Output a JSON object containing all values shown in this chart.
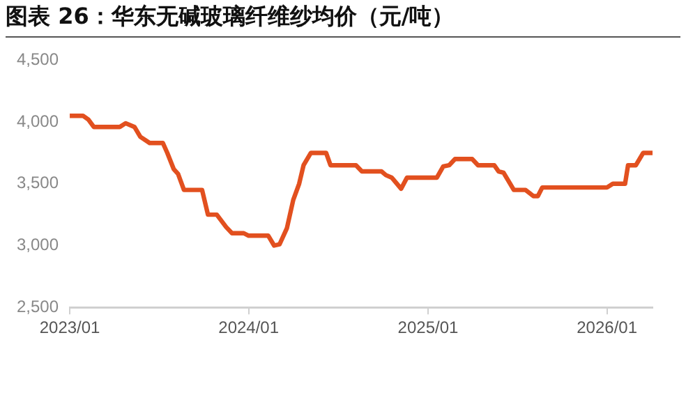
{
  "chart_data": {
    "type": "line",
    "title": "图表 26：华东无碱玻璃纤维纱均价（元/吨）",
    "x": [
      "2023-01-01",
      "2023-01-28",
      "2023-02-08",
      "2023-02-19",
      "2023-04-13",
      "2023-04-25",
      "2023-05-13",
      "2023-05-25",
      "2023-06-13",
      "2023-07-10",
      "2023-07-19",
      "2023-08-01",
      "2023-08-10",
      "2023-08-22",
      "2023-09-28",
      "2023-10-10",
      "2023-10-28",
      "2023-11-16",
      "2023-11-28",
      "2023-12-22",
      "2024-01-01",
      "2024-02-10",
      "2024-02-22",
      "2024-03-04",
      "2024-03-19",
      "2024-04-01",
      "2024-04-13",
      "2024-04-22",
      "2024-05-07",
      "2024-06-07",
      "2024-06-16",
      "2024-08-07",
      "2024-08-19",
      "2024-09-28",
      "2024-10-07",
      "2024-10-19",
      "2024-11-07",
      "2024-11-19",
      "2025-01-19",
      "2025-02-01",
      "2025-02-13",
      "2025-02-25",
      "2025-04-01",
      "2025-04-13",
      "2025-05-16",
      "2025-05-25",
      "2025-06-04",
      "2025-06-25",
      "2025-07-19",
      "2025-08-04",
      "2025-08-13",
      "2025-08-22",
      "2026-01-01",
      "2026-01-13",
      "2026-02-07",
      "2026-02-13",
      "2026-03-01",
      "2026-03-16",
      "2026-04-04"
    ],
    "series": [
      {
        "color": "#e2501f",
        "values": [
          4050,
          4050,
          4020,
          3960,
          3960,
          3990,
          3960,
          3880,
          3830,
          3830,
          3750,
          3620,
          3580,
          3450,
          3450,
          3250,
          3250,
          3150,
          3100,
          3100,
          3080,
          3080,
          3000,
          3010,
          3140,
          3370,
          3500,
          3650,
          3750,
          3750,
          3650,
          3650,
          3600,
          3600,
          3570,
          3550,
          3460,
          3550,
          3550,
          3640,
          3650,
          3700,
          3700,
          3650,
          3650,
          3600,
          3590,
          3450,
          3450,
          3400,
          3400,
          3470,
          3470,
          3500,
          3500,
          3650,
          3650,
          3750,
          3750
        ]
      }
    ],
    "xlim": [
      "2023-01",
      "2026-04-04"
    ],
    "xticks": [
      {
        "value": "2023-01",
        "label": "2023/01"
      },
      {
        "value": "2024-01",
        "label": "2024/01"
      },
      {
        "value": "2025-01",
        "label": "2025/01"
      },
      {
        "value": "2026-01",
        "label": "2026/01"
      }
    ],
    "ylim": [
      2500,
      4500
    ],
    "yticks": [
      {
        "value": 2500,
        "label": "2,500"
      },
      {
        "value": 3000,
        "label": "3,000"
      },
      {
        "value": 3500,
        "label": "3,500"
      },
      {
        "value": 4000,
        "label": "4,000"
      },
      {
        "value": 4500,
        "label": "4,500"
      }
    ],
    "grid": false,
    "legend": false,
    "marker": "none",
    "line_style": "solid"
  }
}
